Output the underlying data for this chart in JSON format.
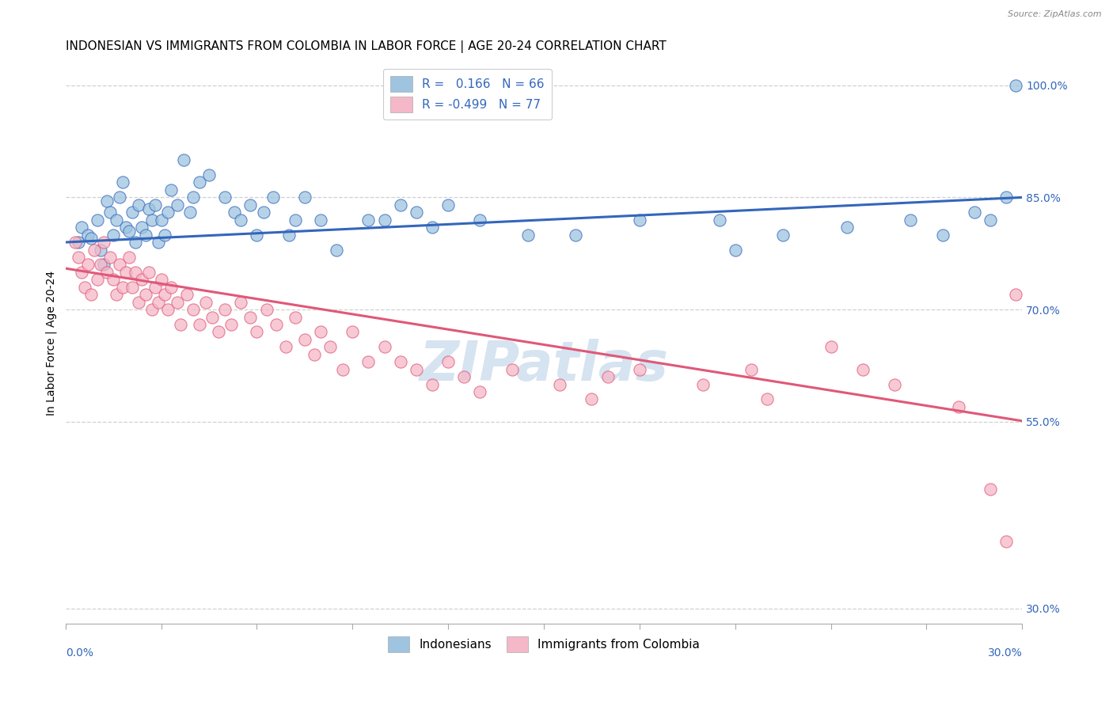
{
  "title": "INDONESIAN VS IMMIGRANTS FROM COLOMBIA IN LABOR FORCE | AGE 20-24 CORRELATION CHART",
  "source": "Source: ZipAtlas.com",
  "ylabel": "In Labor Force | Age 20-24",
  "right_yticks": [
    100.0,
    85.0,
    70.0,
    55.0,
    30.0
  ],
  "xmin": 0.0,
  "xmax": 30.0,
  "ymin": 28.0,
  "ymax": 103.0,
  "legend_label1": "R =   0.166   N = 66",
  "legend_label2": "R = -0.499   N = 77",
  "legend_label1_short": "Indonesians",
  "legend_label2_short": "Immigrants from Colombia",
  "blue_color": "#9ec4e0",
  "pink_color": "#f5b8c8",
  "blue_line_color": "#3366bb",
  "pink_line_color": "#e05878",
  "watermark": "ZIPatlas",
  "watermark_color": "#c5d8ea",
  "title_fontsize": 11,
  "axis_label_fontsize": 10,
  "tick_fontsize": 10,
  "legend_fontsize": 11,
  "blue_line_y_intercept": 79.0,
  "blue_line_slope": 0.2,
  "pink_line_y_intercept": 75.5,
  "pink_line_slope": -0.68,
  "blue_scatter_x": [
    0.4,
    0.5,
    0.7,
    0.8,
    1.0,
    1.1,
    1.2,
    1.3,
    1.4,
    1.5,
    1.6,
    1.7,
    1.8,
    1.9,
    2.0,
    2.1,
    2.2,
    2.3,
    2.4,
    2.5,
    2.6,
    2.7,
    2.8,
    2.9,
    3.0,
    3.1,
    3.2,
    3.3,
    3.5,
    3.7,
    3.9,
    4.0,
    4.2,
    4.5,
    5.0,
    5.3,
    5.5,
    5.8,
    6.0,
    6.2,
    6.5,
    7.0,
    7.2,
    7.5,
    8.0,
    8.5,
    9.5,
    10.0,
    10.5,
    11.0,
    11.5,
    12.0,
    13.0,
    14.5,
    16.0,
    18.0,
    20.5,
    21.0,
    22.5,
    24.5,
    26.5,
    27.5,
    28.5,
    29.0,
    29.5,
    29.8
  ],
  "blue_scatter_y": [
    79.0,
    81.0,
    80.0,
    79.5,
    82.0,
    78.0,
    76.0,
    84.5,
    83.0,
    80.0,
    82.0,
    85.0,
    87.0,
    81.0,
    80.5,
    83.0,
    79.0,
    84.0,
    81.0,
    80.0,
    83.5,
    82.0,
    84.0,
    79.0,
    82.0,
    80.0,
    83.0,
    86.0,
    84.0,
    90.0,
    83.0,
    85.0,
    87.0,
    88.0,
    85.0,
    83.0,
    82.0,
    84.0,
    80.0,
    83.0,
    85.0,
    80.0,
    82.0,
    85.0,
    82.0,
    78.0,
    82.0,
    82.0,
    84.0,
    83.0,
    81.0,
    84.0,
    82.0,
    80.0,
    80.0,
    82.0,
    82.0,
    78.0,
    80.0,
    81.0,
    82.0,
    80.0,
    83.0,
    82.0,
    85.0,
    100.0
  ],
  "pink_scatter_x": [
    0.3,
    0.4,
    0.5,
    0.6,
    0.7,
    0.8,
    0.9,
    1.0,
    1.1,
    1.2,
    1.3,
    1.4,
    1.5,
    1.6,
    1.7,
    1.8,
    1.9,
    2.0,
    2.1,
    2.2,
    2.3,
    2.4,
    2.5,
    2.6,
    2.7,
    2.8,
    2.9,
    3.0,
    3.1,
    3.2,
    3.3,
    3.5,
    3.6,
    3.8,
    4.0,
    4.2,
    4.4,
    4.6,
    4.8,
    5.0,
    5.2,
    5.5,
    5.8,
    6.0,
    6.3,
    6.6,
    6.9,
    7.2,
    7.5,
    7.8,
    8.0,
    8.3,
    8.7,
    9.0,
    9.5,
    10.0,
    10.5,
    11.0,
    11.5,
    12.0,
    12.5,
    13.0,
    14.0,
    15.5,
    16.5,
    18.0,
    20.0,
    21.5,
    22.0,
    24.0,
    25.0,
    26.0,
    28.0,
    29.0,
    29.5,
    29.8,
    17.0
  ],
  "pink_scatter_y": [
    79.0,
    77.0,
    75.0,
    73.0,
    76.0,
    72.0,
    78.0,
    74.0,
    76.0,
    79.0,
    75.0,
    77.0,
    74.0,
    72.0,
    76.0,
    73.0,
    75.0,
    77.0,
    73.0,
    75.0,
    71.0,
    74.0,
    72.0,
    75.0,
    70.0,
    73.0,
    71.0,
    74.0,
    72.0,
    70.0,
    73.0,
    71.0,
    68.0,
    72.0,
    70.0,
    68.0,
    71.0,
    69.0,
    67.0,
    70.0,
    68.0,
    71.0,
    69.0,
    67.0,
    70.0,
    68.0,
    65.0,
    69.0,
    66.0,
    64.0,
    67.0,
    65.0,
    62.0,
    67.0,
    63.0,
    65.0,
    63.0,
    62.0,
    60.0,
    63.0,
    61.0,
    59.0,
    62.0,
    60.0,
    58.0,
    62.0,
    60.0,
    62.0,
    58.0,
    65.0,
    62.0,
    60.0,
    57.0,
    46.0,
    39.0,
    72.0,
    61.0
  ]
}
